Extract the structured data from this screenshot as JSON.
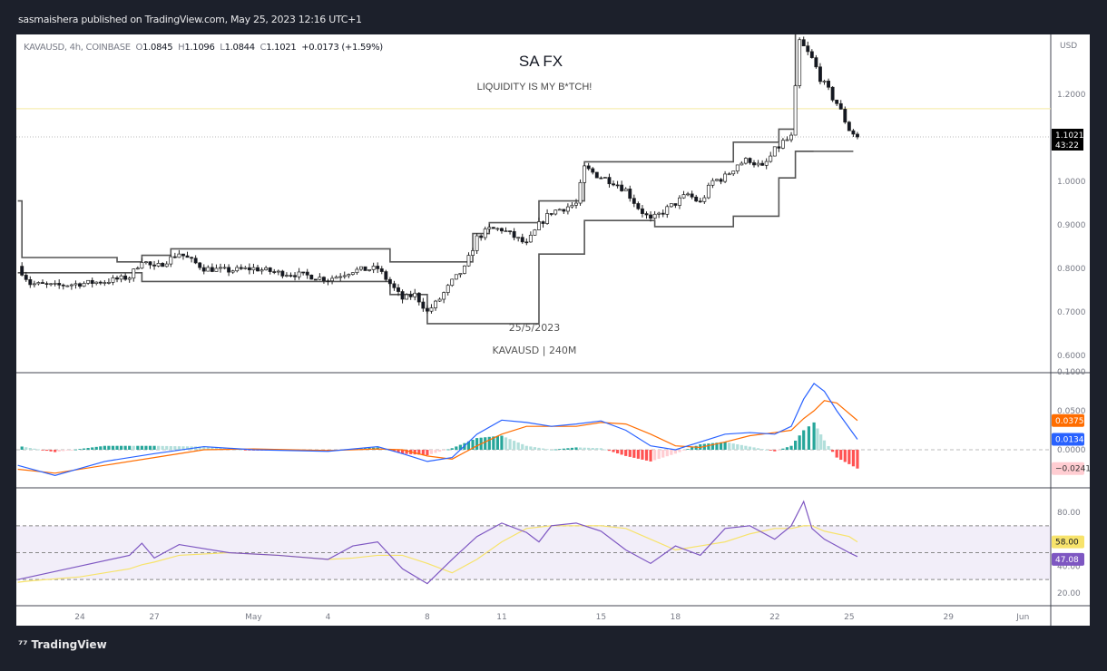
{
  "header": {
    "published": "sasmaishera published on TradingView.com, May 25, 2023 12:16 UTC+1"
  },
  "legend": {
    "symbol": "KAVAUSD, 4h, COINBASE",
    "o_label": "O",
    "o": "1.0845",
    "h_label": "H",
    "h": "1.1096",
    "l_label": "L",
    "l": "1.0844",
    "c_label": "C",
    "c": "1.1021",
    "change": "+0.0173 (+1.59%)"
  },
  "annotations": {
    "title": "SA FX",
    "subtitle": "LIQUIDITY IS MY B*TCH!",
    "date": "25/5/2023",
    "watermark": "KAVAUSD | 240M"
  },
  "footer": {
    "brand": "TradingView"
  },
  "colors": {
    "bull": "#ffffff",
    "bear": "#131722",
    "macd": "#2962ff",
    "signal": "#ff6d00",
    "rsi": "#7e57c2",
    "rsi_ma": "#f7e36b",
    "structure": "#555555",
    "hist_up_strong": "#26a69a",
    "hist_up_weak": "#b2dfdb",
    "hist_down_strong": "#ff5252",
    "hist_down_weak": "#ffcdd2"
  },
  "chart_data": [
    {
      "type": "candlestick",
      "name": "price",
      "unit_label": "USD",
      "ylim": [
        0.55,
        1.35
      ],
      "y_ticks": [
        "1.2000",
        "1.0000",
        "0.9000",
        "0.8000",
        "0.7000",
        "0.6000"
      ],
      "x_ticks": [
        {
          "date": "2023-04-24",
          "label": "24"
        },
        {
          "date": "2023-04-27",
          "label": "27"
        },
        {
          "date": "2023-05-01",
          "label": "May"
        },
        {
          "date": "2023-05-04",
          "label": "4"
        },
        {
          "date": "2023-05-08",
          "label": "8"
        },
        {
          "date": "2023-05-11",
          "label": "11"
        },
        {
          "date": "2023-05-15",
          "label": "15"
        },
        {
          "date": "2023-05-18",
          "label": "18"
        },
        {
          "date": "2023-05-22",
          "label": "22"
        },
        {
          "date": "2023-05-25",
          "label": "25"
        },
        {
          "date": "2023-05-29",
          "label": "29"
        },
        {
          "date": "2023-06-01",
          "label": "Jun"
        }
      ],
      "last_price": {
        "value": 1.1021,
        "label": "1.1021",
        "countdown": "43:22"
      },
      "reference_line": 1.167,
      "closes": [
        [
          "2023-04-21 12",
          0.805
        ],
        [
          "2023-04-22 00",
          0.765
        ],
        [
          "2023-04-23 00",
          0.76
        ],
        [
          "2023-04-24 00",
          0.765
        ],
        [
          "2023-04-25 00",
          0.77
        ],
        [
          "2023-04-26 00",
          0.78
        ],
        [
          "2023-04-26 12",
          0.82
        ],
        [
          "2023-04-27 00",
          0.8
        ],
        [
          "2023-04-28 00",
          0.835
        ],
        [
          "2023-04-29 00",
          0.8
        ],
        [
          "2023-04-30 00",
          0.795
        ],
        [
          "2023-05-01 00",
          0.8
        ],
        [
          "2023-05-02 00",
          0.79
        ],
        [
          "2023-05-03 00",
          0.785
        ],
        [
          "2023-05-04 00",
          0.775
        ],
        [
          "2023-05-05 00",
          0.795
        ],
        [
          "2023-05-06 00",
          0.8
        ],
        [
          "2023-05-07 00",
          0.73
        ],
        [
          "2023-05-07 12",
          0.74
        ],
        [
          "2023-05-08 00",
          0.7
        ],
        [
          "2023-05-08 12",
          0.73
        ],
        [
          "2023-05-09 00",
          0.77
        ],
        [
          "2023-05-09 12",
          0.8
        ],
        [
          "2023-05-10 00",
          0.87
        ],
        [
          "2023-05-10 12",
          0.89
        ],
        [
          "2023-05-11 00",
          0.89
        ],
        [
          "2023-05-12 00",
          0.855
        ],
        [
          "2023-05-12 12",
          0.9
        ],
        [
          "2023-05-13 00",
          0.93
        ],
        [
          "2023-05-14 00",
          0.948
        ],
        [
          "2023-05-14 08",
          1.03
        ],
        [
          "2023-05-15 00",
          1.01
        ],
        [
          "2023-05-15 12",
          1.0
        ],
        [
          "2023-05-16 00",
          0.98
        ],
        [
          "2023-05-16 12",
          0.94
        ],
        [
          "2023-05-17 00",
          0.91
        ],
        [
          "2023-05-17 12",
          0.93
        ],
        [
          "2023-05-18 00",
          0.95
        ],
        [
          "2023-05-18 12",
          0.97
        ],
        [
          "2023-05-19 00",
          0.95
        ],
        [
          "2023-05-19 12",
          1.0
        ],
        [
          "2023-05-20 00",
          1.01
        ],
        [
          "2023-05-20 12",
          1.04
        ],
        [
          "2023-05-21 00",
          1.05
        ],
        [
          "2023-05-21 12",
          1.03
        ],
        [
          "2023-05-22 00",
          1.07
        ],
        [
          "2023-05-22 08",
          1.09
        ],
        [
          "2023-05-22 16",
          1.1
        ],
        [
          "2023-05-23 00",
          1.32
        ],
        [
          "2023-05-23 12",
          1.28
        ],
        [
          "2023-05-24 00",
          1.22
        ],
        [
          "2023-05-24 12",
          1.18
        ],
        [
          "2023-05-25 00",
          1.12
        ],
        [
          "2023-05-25 08",
          1.1021
        ]
      ],
      "resistance_steps": [
        [
          "2023-04-21 12",
          0.955
        ],
        [
          "2023-04-21 16",
          0.825
        ],
        [
          "2023-04-25 12",
          0.815
        ],
        [
          "2023-04-26 12",
          0.83
        ],
        [
          "2023-04-27 16",
          0.845
        ],
        [
          "2023-05-06 12",
          0.815
        ],
        [
          "2023-05-08 00",
          0.815
        ],
        [
          "2023-05-09 20",
          0.88
        ],
        [
          "2023-05-10 12",
          0.905
        ],
        [
          "2023-05-12 12",
          0.955
        ],
        [
          "2023-05-14 08",
          1.045
        ],
        [
          "2023-05-20 08",
          1.09
        ],
        [
          "2023-05-22 04",
          1.12
        ],
        [
          "2023-05-22 20",
          1.35
        ]
      ],
      "support_steps": [
        [
          "2023-04-21 12",
          0.79
        ],
        [
          "2023-04-26 12",
          0.77
        ],
        [
          "2023-05-06 12",
          0.74
        ],
        [
          "2023-05-08 00",
          0.673
        ],
        [
          "2023-05-12 12",
          0.833
        ],
        [
          "2023-05-14 08",
          0.91
        ],
        [
          "2023-05-17 04",
          0.896
        ],
        [
          "2023-05-20 08",
          0.92
        ],
        [
          "2023-05-22 04",
          1.008
        ],
        [
          "2023-05-22 20",
          1.069
        ],
        [
          "2023-05-25 04",
          1.069
        ]
      ]
    },
    {
      "type": "line",
      "name": "MACD",
      "ylim": [
        -0.045,
        0.1
      ],
      "y_ticks": [
        "0.1000",
        "0.0500",
        "0.0000"
      ],
      "labels": {
        "signal": "0.0375",
        "macd": "0.0134",
        "hist": "−0.0241"
      },
      "points": [
        [
          "2023-04-21 12",
          -0.02,
          -0.025
        ],
        [
          "2023-04-23 00",
          -0.033,
          -0.03
        ],
        [
          "2023-04-25 00",
          -0.015,
          -0.02
        ],
        [
          "2023-04-27 00",
          -0.005,
          -0.01
        ],
        [
          "2023-04-29 00",
          0.004,
          0.0
        ],
        [
          "2023-05-01 00",
          0.0,
          0.001
        ],
        [
          "2023-05-04 00",
          -0.002,
          -0.001
        ],
        [
          "2023-05-06 00",
          0.004,
          0.001
        ],
        [
          "2023-05-07 00",
          -0.005,
          0.0
        ],
        [
          "2023-05-08 00",
          -0.015,
          -0.008
        ],
        [
          "2023-05-09 00",
          -0.01,
          -0.012
        ],
        [
          "2023-05-10 00",
          0.02,
          0.005
        ],
        [
          "2023-05-11 00",
          0.038,
          0.02
        ],
        [
          "2023-05-12 00",
          0.035,
          0.03
        ],
        [
          "2023-05-13 00",
          0.03,
          0.03
        ],
        [
          "2023-05-14 00",
          0.033,
          0.03
        ],
        [
          "2023-05-15 00",
          0.037,
          0.035
        ],
        [
          "2023-05-16 00",
          0.025,
          0.033
        ],
        [
          "2023-05-17 00",
          0.005,
          0.02
        ],
        [
          "2023-05-18 00",
          0.0,
          0.005
        ],
        [
          "2023-05-19 00",
          0.01,
          0.003
        ],
        [
          "2023-05-20 00",
          0.02,
          0.01
        ],
        [
          "2023-05-21 00",
          0.022,
          0.018
        ],
        [
          "2023-05-22 00",
          0.02,
          0.022
        ],
        [
          "2023-05-22 16",
          0.03,
          0.025
        ],
        [
          "2023-05-23 04",
          0.065,
          0.04
        ],
        [
          "2023-05-23 14",
          0.085,
          0.05
        ],
        [
          "2023-05-24 00",
          0.075,
          0.063
        ],
        [
          "2023-05-24 12",
          0.05,
          0.06
        ],
        [
          "2023-05-25 08",
          0.0134,
          0.0375
        ]
      ]
    },
    {
      "type": "line",
      "name": "RSI",
      "ylim": [
        10,
        95
      ],
      "y_ticks": [
        "80.00",
        "40.00",
        "20.00"
      ],
      "bands": [
        70,
        50,
        30
      ],
      "labels": {
        "ma": "58.00",
        "rsi": "47.08"
      },
      "points": [
        [
          "2023-04-21 12",
          30,
          28
        ],
        [
          "2023-04-22 00",
          32,
          29
        ],
        [
          "2023-04-24 00",
          40,
          32
        ],
        [
          "2023-04-26 00",
          48,
          38
        ],
        [
          "2023-04-26 12",
          57,
          41
        ],
        [
          "2023-04-27 00",
          46,
          43
        ],
        [
          "2023-04-28 00",
          56,
          48
        ],
        [
          "2023-04-30 00",
          50,
          50
        ],
        [
          "2023-05-02 00",
          48,
          48
        ],
        [
          "2023-05-04 00",
          45,
          45
        ],
        [
          "2023-05-05 00",
          55,
          46
        ],
        [
          "2023-05-06 00",
          58,
          48
        ],
        [
          "2023-05-07 00",
          38,
          48
        ],
        [
          "2023-05-08 00",
          27,
          42
        ],
        [
          "2023-05-09 00",
          45,
          35
        ],
        [
          "2023-05-10 00",
          62,
          45
        ],
        [
          "2023-05-11 00",
          72,
          58
        ],
        [
          "2023-05-12 00",
          65,
          68
        ],
        [
          "2023-05-12 12",
          58,
          69
        ],
        [
          "2023-05-13 00",
          70,
          70
        ],
        [
          "2023-05-14 00",
          72,
          70
        ],
        [
          "2023-05-15 00",
          66,
          70
        ],
        [
          "2023-05-16 00",
          52,
          68
        ],
        [
          "2023-05-17 00",
          42,
          60
        ],
        [
          "2023-05-18 00",
          55,
          52
        ],
        [
          "2023-05-19 00",
          48,
          55
        ],
        [
          "2023-05-20 00",
          68,
          58
        ],
        [
          "2023-05-21 00",
          70,
          64
        ],
        [
          "2023-05-22 00",
          60,
          68
        ],
        [
          "2023-05-22 16",
          70,
          68
        ],
        [
          "2023-05-23 04",
          88,
          70
        ],
        [
          "2023-05-23 12",
          68,
          70
        ],
        [
          "2023-05-24 00",
          60,
          66
        ],
        [
          "2023-05-25 00",
          50,
          62
        ],
        [
          "2023-05-25 08",
          47.08,
          58
        ]
      ]
    }
  ]
}
